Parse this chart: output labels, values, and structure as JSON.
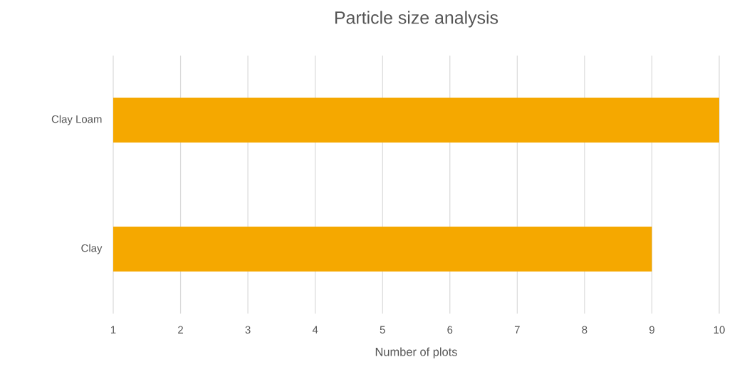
{
  "chart_data": {
    "type": "bar",
    "orientation": "horizontal",
    "title": "Particle size analysis",
    "xlabel": "Number of plots",
    "categories": [
      "Clay Loam",
      "Clay"
    ],
    "values": [
      10,
      9
    ],
    "color": "#f5a800",
    "xlim": [
      1,
      10
    ],
    "xticks": [
      1,
      2,
      3,
      4,
      5,
      6,
      7,
      8,
      9,
      10
    ],
    "grid": "x"
  }
}
